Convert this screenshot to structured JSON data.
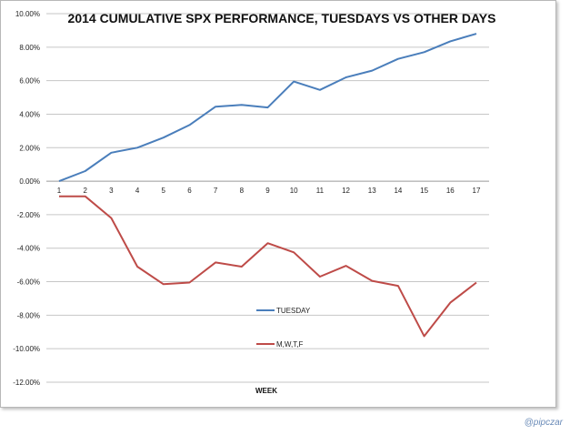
{
  "chart_data": {
    "type": "line",
    "title": "2014 CUMULATIVE SPX PERFORMANCE, TUESDAYS VS OTHER DAYS",
    "xlabel": "WEEK",
    "ylabel": "",
    "x": [
      1,
      2,
      3,
      4,
      5,
      6,
      7,
      8,
      9,
      10,
      11,
      12,
      13,
      14,
      15,
      16,
      17
    ],
    "ylim": [
      -12,
      10
    ],
    "y_ticks": [
      10,
      8,
      6,
      4,
      2,
      0,
      -2,
      -4,
      -6,
      -8,
      -10,
      -12
    ],
    "y_tick_labels": [
      "10.00%",
      "8.00%",
      "6.00%",
      "4.00%",
      "2.00%",
      "0.00%",
      "-2.00%",
      "-4.00%",
      "-6.00%",
      "-8.00%",
      "-10.00%",
      "-12.00%"
    ],
    "grid": true,
    "legend_position": "center-bottom",
    "series": [
      {
        "name": "TUESDAY",
        "color": "#4a7ebb",
        "values": [
          0.0,
          0.6,
          1.7,
          2.0,
          2.6,
          3.35,
          4.45,
          4.55,
          4.4,
          5.95,
          5.45,
          6.2,
          6.6,
          7.3,
          7.7,
          8.35,
          8.8
        ]
      },
      {
        "name": "M,W,T,F",
        "color": "#be4b48",
        "values": [
          -0.9,
          -0.9,
          -2.2,
          -5.1,
          -6.15,
          -6.05,
          -4.85,
          -5.1,
          -3.7,
          -4.25,
          -5.7,
          -5.05,
          -5.95,
          -6.25,
          -9.25,
          -7.25,
          -6.05
        ]
      }
    ]
  },
  "credit": "@pipczar"
}
